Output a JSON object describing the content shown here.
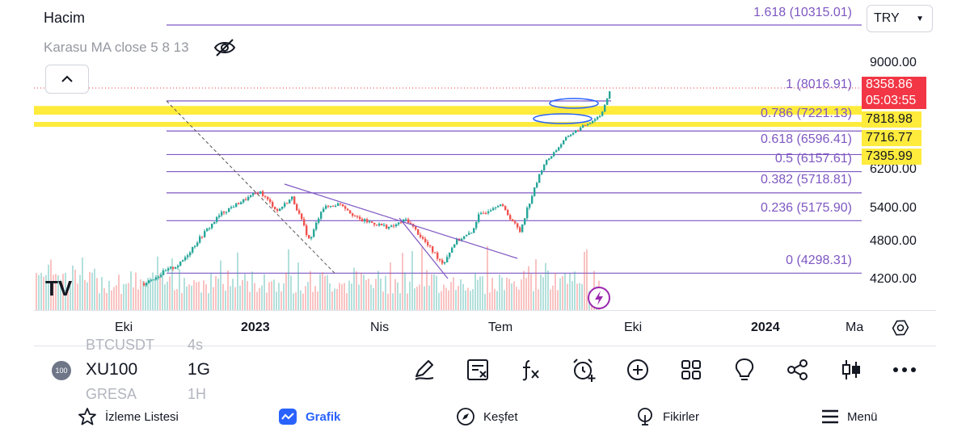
{
  "legend": {
    "title": "Hacim",
    "ma_label": "Karasu MA close 5 8 13"
  },
  "currency": {
    "selected": "TRY"
  },
  "price_axis": {
    "ticks": [
      "9000.00",
      "6200.00",
      "5400.00",
      "4800.00",
      "4200.00"
    ]
  },
  "price_tags": {
    "last_price": "8358.86",
    "countdown": "05:03:55",
    "level_1": "7818.98",
    "level_2": "7716.77",
    "level_3": "7395.99"
  },
  "fib_levels": [
    {
      "label": "1.618 (10315.01)",
      "ratio": 1.618,
      "price": 10315.01
    },
    {
      "label": "1 (8016.91)",
      "ratio": 1,
      "price": 8016.91
    },
    {
      "label": "0.786 (7221.13)",
      "ratio": 0.786,
      "price": 7221.13
    },
    {
      "label": "0.618 (6596.41)",
      "ratio": 0.618,
      "price": 6596.41
    },
    {
      "label": "0.5 (6157.61)",
      "ratio": 0.5,
      "price": 6157.61
    },
    {
      "label": "0.382 (5718.81)",
      "ratio": 0.382,
      "price": 5718.81
    },
    {
      "label": "0.236 (5175.90)",
      "ratio": 0.236,
      "price": 5175.9
    },
    {
      "label": "0 (4298.31)",
      "ratio": 0,
      "price": 4298.31
    }
  ],
  "time_axis": {
    "labels": [
      {
        "text": "Eki",
        "bold": false
      },
      {
        "text": "2023",
        "bold": true
      },
      {
        "text": "Nis",
        "bold": false
      },
      {
        "text": "Tem",
        "bold": false
      },
      {
        "text": "Eki",
        "bold": false
      },
      {
        "text": "2024",
        "bold": true
      },
      {
        "text": "Ma",
        "bold": false
      }
    ]
  },
  "symbol_picker": {
    "prev_symbol": "BTCUSDT",
    "prev_interval": "4s",
    "badge": "100",
    "symbol": "XU100",
    "interval": "1G",
    "next_symbol": "GRESA",
    "next_interval": "1H"
  },
  "bottom_nav": [
    {
      "label": "İzleme Listesi",
      "icon": "star-icon",
      "active": false
    },
    {
      "label": "Grafik",
      "icon": "chart-icon",
      "active": true
    },
    {
      "label": "Keşfet",
      "icon": "compass-icon",
      "active": false
    },
    {
      "label": "Fikirler",
      "icon": "lightbulb-icon",
      "active": false
    },
    {
      "label": "Menü",
      "icon": "hamburger-icon",
      "active": false
    }
  ],
  "colors": {
    "fib": "#7e57c2",
    "up": "#26a69a",
    "down": "#ef5350",
    "highlight": "#ffeb3b",
    "accent": "#2962ff",
    "last_price": "#f23645"
  },
  "watermark": "TV"
}
